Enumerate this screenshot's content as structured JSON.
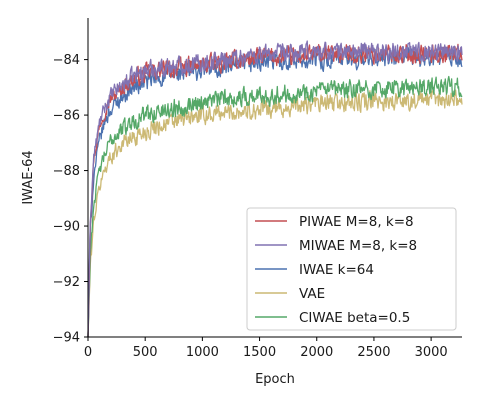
{
  "chart_data": {
    "type": "line",
    "title": "",
    "xlabel": "Epoch",
    "ylabel": "IWAE-64",
    "xlim": [
      0,
      3270
    ],
    "ylim": [
      -94,
      -82.5
    ],
    "xticks": [
      0,
      500,
      1000,
      1500,
      2000,
      2500,
      3000
    ],
    "xtick_labels": [
      "0",
      "500",
      "1000",
      "1500",
      "2000",
      "2500",
      "3000"
    ],
    "yticks": [
      -94,
      -92,
      -90,
      -88,
      -86,
      -84
    ],
    "ytick_labels": [
      "−94",
      "−92",
      "−90",
      "−88",
      "−86",
      "−84"
    ],
    "grid": false,
    "legend_position": "lower-right",
    "series": [
      {
        "name": "PIWAE M=8, k=8",
        "color": "#C44E52",
        "x": [
          0,
          20,
          50,
          100,
          150,
          200,
          300,
          400,
          500,
          600,
          800,
          1000,
          1200,
          1500,
          1800,
          2000,
          2300,
          2600,
          3000,
          3270
        ],
        "y": [
          -94,
          -89.8,
          -87.6,
          -86.4,
          -85.8,
          -85.4,
          -85.0,
          -84.7,
          -84.5,
          -84.4,
          -84.3,
          -84.2,
          -84.1,
          -83.9,
          -83.9,
          -83.8,
          -83.8,
          -83.8,
          -83.8,
          -83.75
        ]
      },
      {
        "name": "MIWAE M=8, k=8",
        "color": "#8172B2",
        "x": [
          0,
          20,
          50,
          100,
          150,
          200,
          300,
          400,
          500,
          600,
          800,
          1000,
          1200,
          1500,
          1800,
          2000,
          2300,
          2600,
          3000,
          3270
        ],
        "y": [
          -94,
          -89.8,
          -87.5,
          -86.3,
          -85.7,
          -85.3,
          -84.9,
          -84.6,
          -84.4,
          -84.3,
          -84.2,
          -84.1,
          -84.0,
          -83.8,
          -83.8,
          -83.7,
          -83.7,
          -83.7,
          -83.7,
          -83.65
        ]
      },
      {
        "name": "IWAE k=64",
        "color": "#4C72B0",
        "x": [
          0,
          20,
          50,
          100,
          150,
          200,
          300,
          400,
          500,
          600,
          800,
          1000,
          1200,
          1500,
          1800,
          2000,
          2300,
          2600,
          3000,
          3270
        ],
        "y": [
          -94,
          -90.2,
          -88.2,
          -86.9,
          -86.2,
          -85.8,
          -85.3,
          -85.0,
          -84.8,
          -84.7,
          -84.5,
          -84.4,
          -84.3,
          -84.1,
          -84.0,
          -84.0,
          -84.0,
          -83.95,
          -83.95,
          -83.95
        ]
      },
      {
        "name": "VAE",
        "color": "#CCB974",
        "x": [
          0,
          20,
          50,
          100,
          150,
          200,
          300,
          400,
          500,
          600,
          800,
          1000,
          1200,
          1500,
          1800,
          2000,
          2300,
          2600,
          3000,
          3270
        ],
        "y": [
          -94,
          -91.5,
          -89.8,
          -88.6,
          -87.9,
          -87.5,
          -87.0,
          -86.8,
          -86.6,
          -86.4,
          -86.2,
          -86.0,
          -85.9,
          -85.8,
          -85.7,
          -85.6,
          -85.55,
          -85.5,
          -85.45,
          -85.4
        ]
      },
      {
        "name": "CIWAE beta=0.5",
        "color": "#55A868",
        "x": [
          0,
          20,
          50,
          100,
          150,
          200,
          300,
          400,
          500,
          600,
          800,
          1000,
          1200,
          1500,
          1800,
          2000,
          2300,
          2600,
          3000,
          3270
        ],
        "y": [
          -94,
          -91.0,
          -89.2,
          -88.0,
          -87.4,
          -86.9,
          -86.5,
          -86.2,
          -86.0,
          -85.9,
          -85.7,
          -85.5,
          -85.4,
          -85.3,
          -85.2,
          -85.15,
          -85.1,
          -85.05,
          -85.0,
          -84.95
        ]
      }
    ]
  }
}
